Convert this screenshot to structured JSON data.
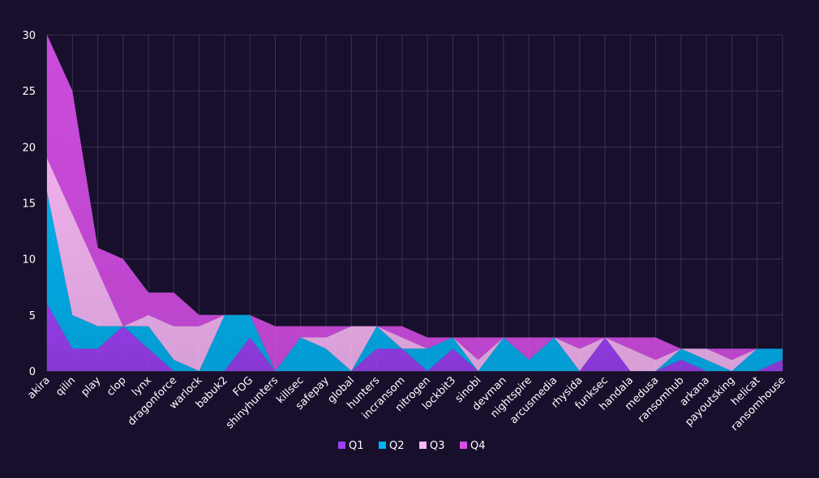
{
  "chart_data": {
    "type": "area",
    "stacked": true,
    "title": "",
    "xlabel": "",
    "ylabel": "",
    "ylim": [
      0,
      30
    ],
    "yticks": [
      0,
      5,
      10,
      15,
      20,
      25,
      30
    ],
    "grid": true,
    "legend_position": "bottom-center",
    "categories": [
      "akira",
      "qilin",
      "play",
      "clop",
      "lynx",
      "dragonforce",
      "warlock",
      "babuk2",
      "FOG",
      "shinyhunters",
      "killsec",
      "safepay",
      "global",
      "hunters",
      "incransom",
      "nitrogen",
      "lockbit3",
      "sinobi",
      "devman",
      "nightspire",
      "arcusmedia",
      "rhysida",
      "funksec",
      "handala",
      "medusa",
      "ransomhub",
      "arkana",
      "payoutsking",
      "helicat",
      "ransomhouse"
    ],
    "series": [
      {
        "name": "Q1",
        "color": "#9b3ff0",
        "values": [
          6,
          2,
          2,
          4,
          2,
          0,
          0,
          0,
          3,
          0,
          0,
          0,
          0,
          2,
          2,
          0,
          2,
          0,
          0,
          0,
          0,
          0,
          3,
          0,
          0,
          1,
          0,
          0,
          0,
          1
        ]
      },
      {
        "name": "Q2",
        "color": "#00b4f0",
        "values": [
          10,
          3,
          2,
          0,
          2,
          1,
          0,
          5,
          2,
          0,
          3,
          2,
          0,
          2,
          0,
          2,
          1,
          0,
          3,
          1,
          3,
          0,
          0,
          0,
          0,
          1,
          1,
          0,
          2,
          1
        ]
      },
      {
        "name": "Q3",
        "color": "#f9b8f5",
        "values": [
          3,
          9,
          5,
          0,
          1,
          3,
          4,
          0,
          0,
          0,
          0,
          1,
          4,
          0,
          1,
          0,
          0,
          1,
          0,
          0,
          0,
          2,
          0,
          2,
          1,
          0,
          1,
          1,
          0,
          0
        ]
      },
      {
        "name": "Q4",
        "color": "#d64ee6",
        "values": [
          11,
          11,
          2,
          6,
          2,
          3,
          1,
          0,
          0,
          4,
          1,
          1,
          0,
          0,
          1,
          1,
          0,
          2,
          0,
          2,
          0,
          1,
          0,
          1,
          2,
          0,
          0,
          1,
          0,
          0
        ]
      }
    ]
  }
}
